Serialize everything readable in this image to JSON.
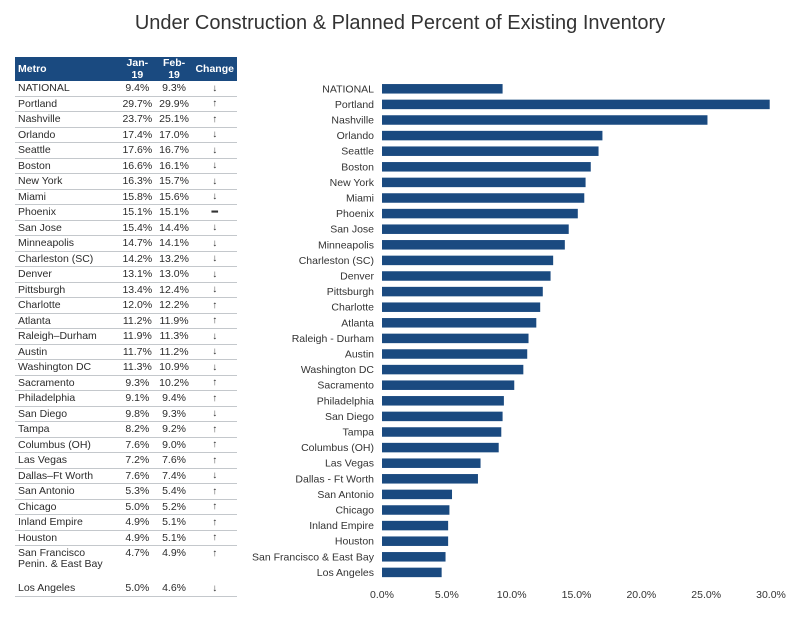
{
  "title": "Under Construction & Planned Percent of Existing Inventory",
  "table": {
    "headers": [
      "Metro",
      "Jan-19",
      "Feb-19",
      "Change"
    ],
    "rows": [
      {
        "metro": "NATIONAL",
        "jan": "9.4%",
        "feb": "9.3%",
        "change": "down"
      },
      {
        "metro": "Portland",
        "jan": "29.7%",
        "feb": "29.9%",
        "change": "up"
      },
      {
        "metro": "Nashville",
        "jan": "23.7%",
        "feb": "25.1%",
        "change": "up"
      },
      {
        "metro": "Orlando",
        "jan": "17.4%",
        "feb": "17.0%",
        "change": "down"
      },
      {
        "metro": "Seattle",
        "jan": "17.6%",
        "feb": "16.7%",
        "change": "down"
      },
      {
        "metro": "Boston",
        "jan": "16.6%",
        "feb": "16.1%",
        "change": "down"
      },
      {
        "metro": "New York",
        "jan": "16.3%",
        "feb": "15.7%",
        "change": "down"
      },
      {
        "metro": "Miami",
        "jan": "15.8%",
        "feb": "15.6%",
        "change": "down"
      },
      {
        "metro": "Phoenix",
        "jan": "15.1%",
        "feb": "15.1%",
        "change": "flat"
      },
      {
        "metro": "San Jose",
        "jan": "15.4%",
        "feb": "14.4%",
        "change": "down"
      },
      {
        "metro": "Minneapolis",
        "jan": "14.7%",
        "feb": "14.1%",
        "change": "down"
      },
      {
        "metro": "Charleston (SC)",
        "jan": "14.2%",
        "feb": "13.2%",
        "change": "down"
      },
      {
        "metro": "Denver",
        "jan": "13.1%",
        "feb": "13.0%",
        "change": "down"
      },
      {
        "metro": "Pittsburgh",
        "jan": "13.4%",
        "feb": "12.4%",
        "change": "down"
      },
      {
        "metro": "Charlotte",
        "jan": "12.0%",
        "feb": "12.2%",
        "change": "up"
      },
      {
        "metro": "Atlanta",
        "jan": "11.2%",
        "feb": "11.9%",
        "change": "up"
      },
      {
        "metro": "Raleigh–Durham",
        "jan": "11.9%",
        "feb": "11.3%",
        "change": "down"
      },
      {
        "metro": "Austin",
        "jan": "11.7%",
        "feb": "11.2%",
        "change": "down"
      },
      {
        "metro": "Washington DC",
        "jan": "11.3%",
        "feb": "10.9%",
        "change": "down"
      },
      {
        "metro": "Sacramento",
        "jan": "9.3%",
        "feb": "10.2%",
        "change": "up"
      },
      {
        "metro": "Philadelphia",
        "jan": "9.1%",
        "feb": "9.4%",
        "change": "up"
      },
      {
        "metro": "San Diego",
        "jan": "9.8%",
        "feb": "9.3%",
        "change": "down"
      },
      {
        "metro": "Tampa",
        "jan": "8.2%",
        "feb": "9.2%",
        "change": "up"
      },
      {
        "metro": "Columbus (OH)",
        "jan": "7.6%",
        "feb": "9.0%",
        "change": "up"
      },
      {
        "metro": "Las Vegas",
        "jan": "7.2%",
        "feb": "7.6%",
        "change": "up"
      },
      {
        "metro": "Dallas–Ft Worth",
        "jan": "7.6%",
        "feb": "7.4%",
        "change": "down"
      },
      {
        "metro": "San Antonio",
        "jan": "5.3%",
        "feb": "5.4%",
        "change": "up"
      },
      {
        "metro": "Chicago",
        "jan": "5.0%",
        "feb": "5.2%",
        "change": "up"
      },
      {
        "metro": "Inland Empire",
        "jan": "4.9%",
        "feb": "5.1%",
        "change": "up"
      },
      {
        "metro": "Houston",
        "jan": "4.9%",
        "feb": "5.1%",
        "change": "up"
      },
      {
        "metro": "San Francisco Penin. & East Bay",
        "jan": "4.7%",
        "feb": "4.9%",
        "change": "up"
      },
      {
        "metro": "Los Angeles",
        "jan": "5.0%",
        "feb": "4.6%",
        "change": "down"
      }
    ]
  },
  "colors": {
    "bar": "#1a4a80",
    "header_bg": "#1a4a80"
  },
  "chart_data": {
    "type": "bar",
    "orientation": "horizontal",
    "categories": [
      "NATIONAL",
      "Portland",
      "Nashville",
      "Orlando",
      "Seattle",
      "Boston",
      "New York",
      "Miami",
      "Phoenix",
      "San Jose",
      "Minneapolis",
      "Charleston (SC)",
      "Denver",
      "Pittsburgh",
      "Charlotte",
      "Atlanta",
      "Raleigh - Durham",
      "Austin",
      "Washington DC",
      "Sacramento",
      "Philadelphia",
      "San Diego",
      "Tampa",
      "Columbus (OH)",
      "Las Vegas",
      "Dallas - Ft Worth",
      "San Antonio",
      "Chicago",
      "Inland Empire",
      "Houston",
      "San Francisco & East Bay",
      "Los Angeles"
    ],
    "values": [
      9.3,
      29.9,
      25.1,
      17.0,
      16.7,
      16.1,
      15.7,
      15.6,
      15.1,
      14.4,
      14.1,
      13.2,
      13.0,
      12.4,
      12.2,
      11.9,
      11.3,
      11.2,
      10.9,
      10.2,
      9.4,
      9.3,
      9.2,
      9.0,
      7.6,
      7.4,
      5.4,
      5.2,
      5.1,
      5.1,
      4.9,
      4.6
    ],
    "xlim": [
      0,
      30
    ],
    "xticks": [
      "0.0%",
      "5.0%",
      "10.0%",
      "15.0%",
      "20.0%",
      "25.0%",
      "30.0%"
    ],
    "grid": false
  }
}
